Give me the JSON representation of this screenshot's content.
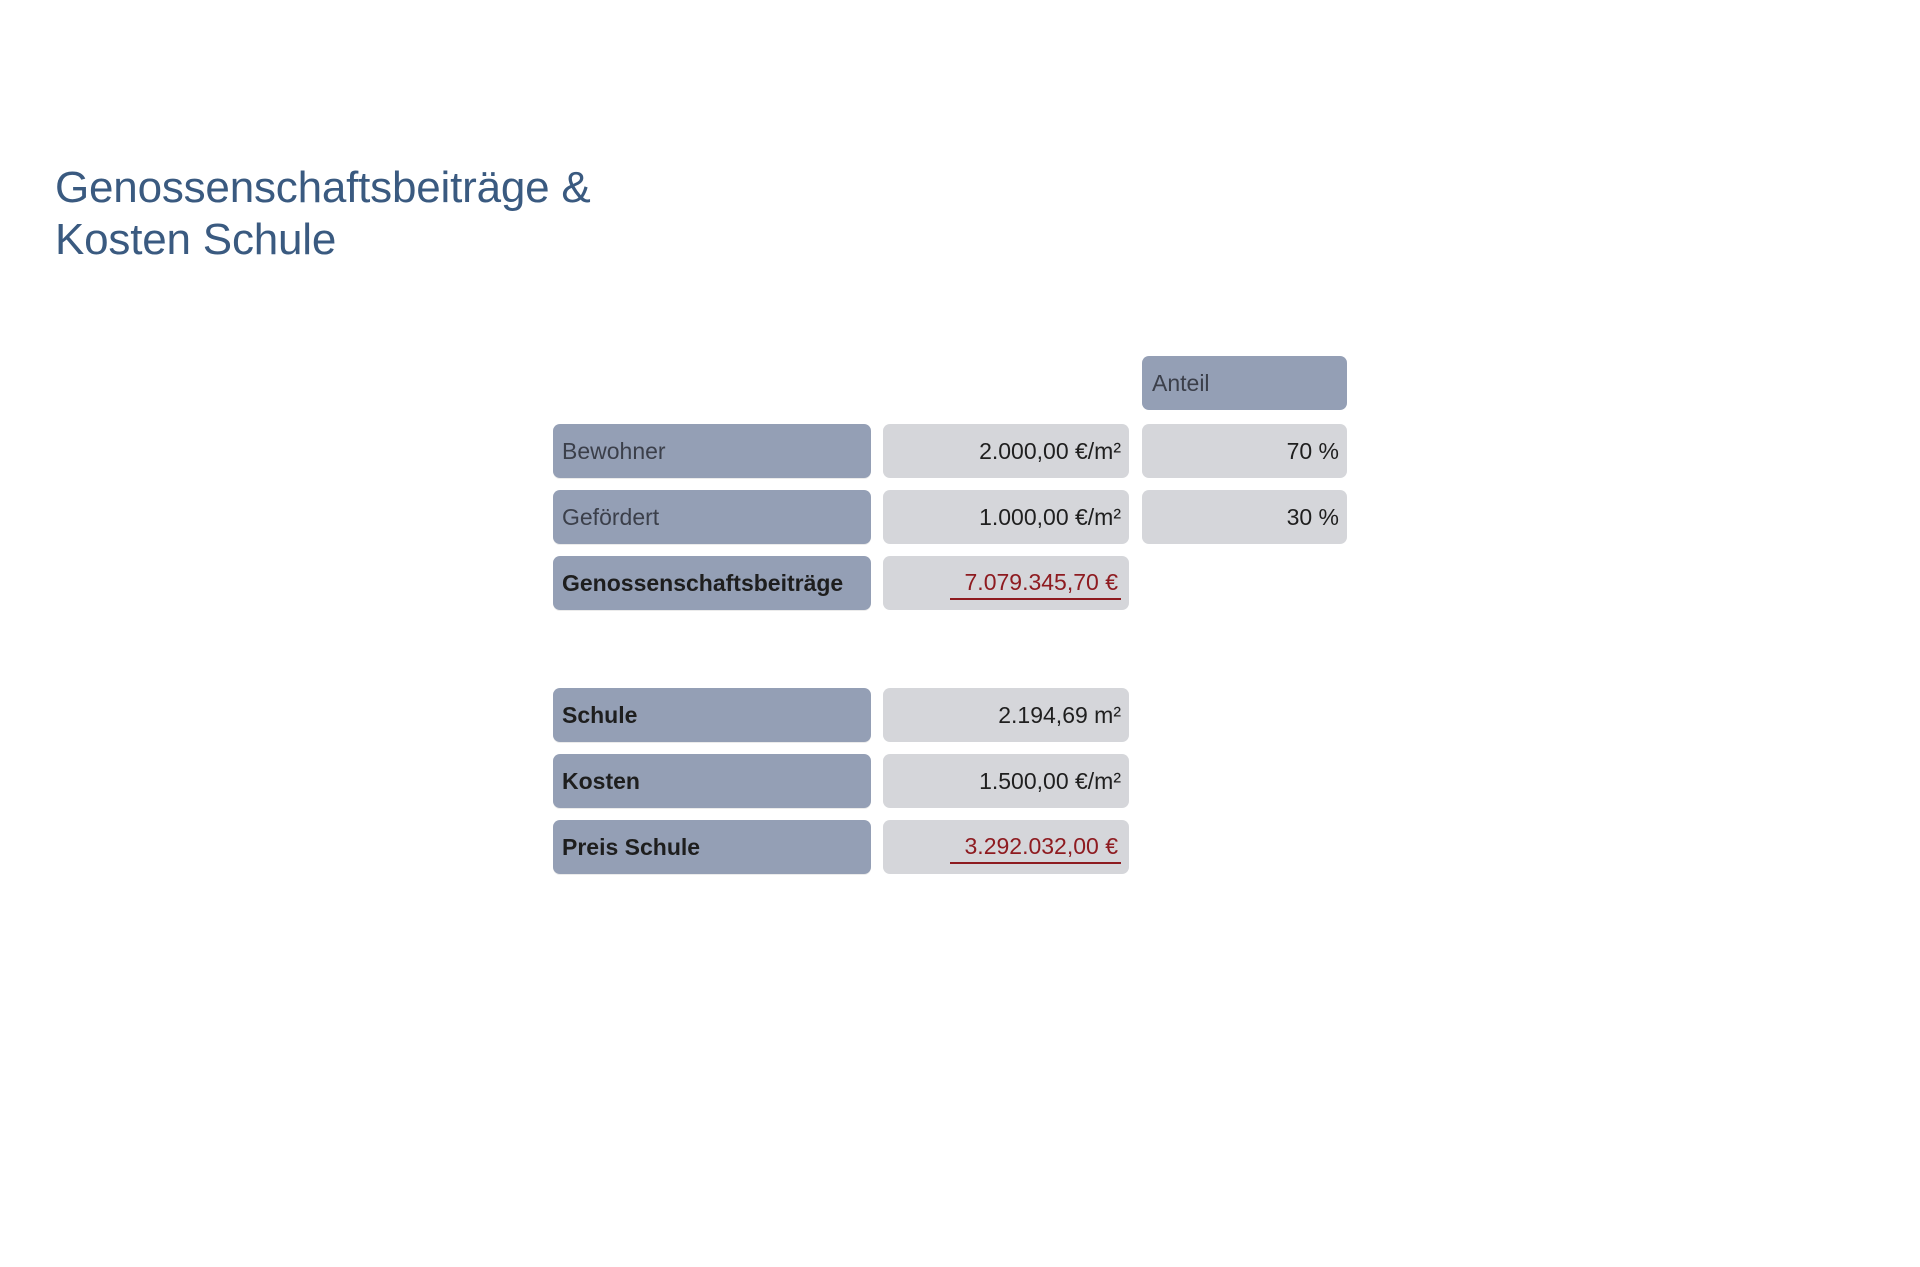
{
  "title": {
    "line1": "Genossenschaftsbeiträge &",
    "line2": "Kosten Schule"
  },
  "contributions": {
    "share_header": "Anteil",
    "rows": [
      {
        "label": "Bewohner",
        "value": "2.000,00 €/m²",
        "share": "70 %"
      },
      {
        "label": "Gefördert",
        "value": "1.000,00 €/m²",
        "share": "30 %"
      }
    ],
    "total": {
      "label": "Genossenschaftsbeiträge",
      "value": "7.079.345,70 €"
    }
  },
  "school": {
    "rows": [
      {
        "label": "Schule",
        "value": "2.194,69 m²"
      },
      {
        "label": "Kosten",
        "value": "1.500,00 €/m²"
      }
    ],
    "total": {
      "label": "Preis Schule",
      "value": "3.292.032,00 €"
    }
  },
  "colors": {
    "title": "#3a5a80",
    "label_bg": "#949fb5",
    "value_bg": "#d5d6da",
    "total_text": "#8e1b20"
  }
}
